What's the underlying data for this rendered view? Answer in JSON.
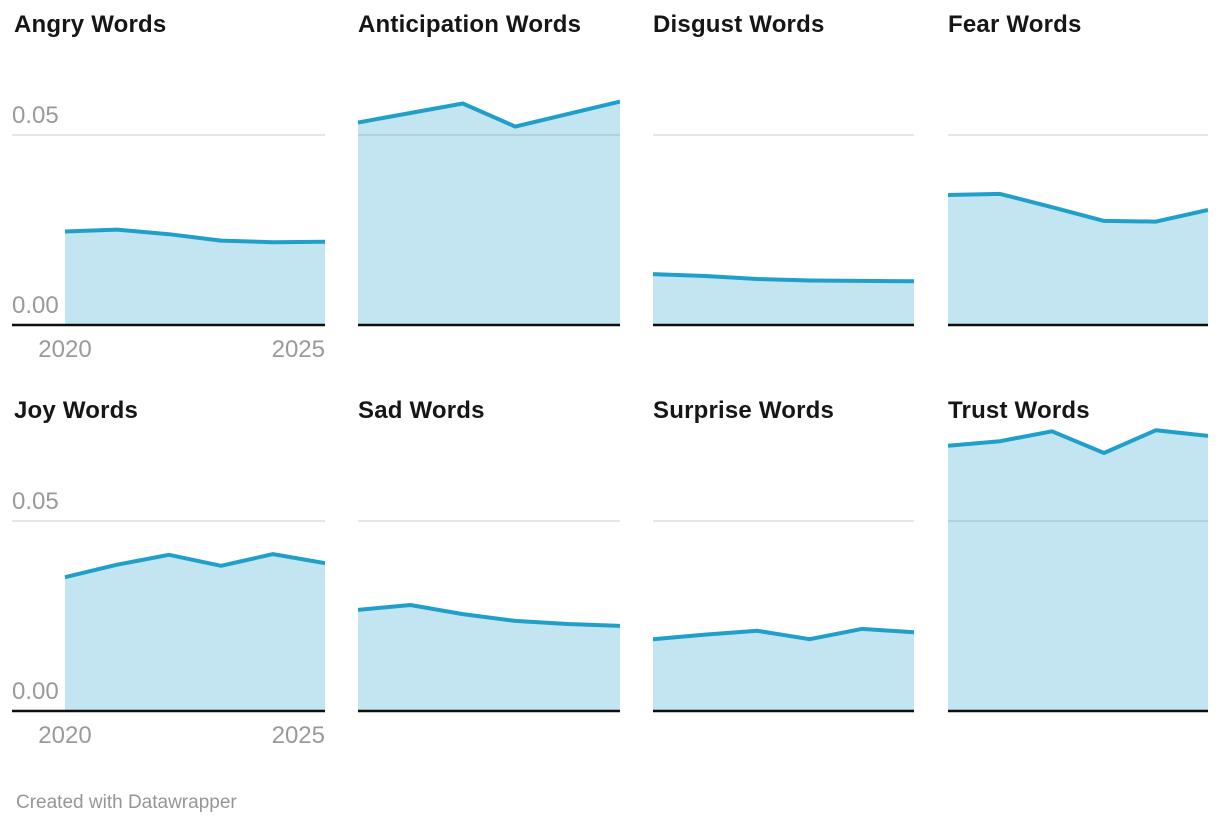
{
  "page": {
    "footer": "Created with Datawrapper"
  },
  "style": {
    "line_color": "#1f9fca",
    "fill_color": "#1f9fca",
    "fill_opacity": 0.27,
    "grid_color": "#d8d8d8",
    "axis_color": "#0e0e0e",
    "title_color": "#161616",
    "tick_color": "#9a9a9a"
  },
  "chart_data": {
    "type": "area",
    "layout": "small-multiples",
    "x": [
      2020,
      2021,
      2022,
      2023,
      2024,
      2025
    ],
    "x_ticks": [
      "2020",
      "2025"
    ],
    "y_ticks": [
      "0.05",
      "0.00"
    ],
    "grid_value": 0.05,
    "ylim": [
      0,
      0.076
    ],
    "legend": "none",
    "series": [
      {
        "name": "Angry Words",
        "values": [
          0.0246,
          0.0251,
          0.0239,
          0.0222,
          0.0218,
          0.0219
        ]
      },
      {
        "name": "Anticipation Words",
        "values": [
          0.0533,
          0.0558,
          0.0583,
          0.0522,
          0.0555,
          0.0588
        ]
      },
      {
        "name": "Disgust Words",
        "values": [
          0.0134,
          0.0129,
          0.0121,
          0.0117,
          0.0116,
          0.0115
        ]
      },
      {
        "name": "Fear Words",
        "values": [
          0.0342,
          0.0345,
          0.031,
          0.0274,
          0.0272,
          0.0303
        ]
      },
      {
        "name": "Joy Words",
        "values": [
          0.0352,
          0.0385,
          0.0411,
          0.0382,
          0.0413,
          0.0389
        ]
      },
      {
        "name": "Sad Words",
        "values": [
          0.0266,
          0.0279,
          0.0255,
          0.0237,
          0.0229,
          0.0224
        ]
      },
      {
        "name": "Surprise Words",
        "values": [
          0.0189,
          0.0201,
          0.0211,
          0.0189,
          0.0216,
          0.0207
        ]
      },
      {
        "name": "Trust Words",
        "values": [
          0.0698,
          0.071,
          0.0736,
          0.0679,
          0.0739,
          0.0724
        ]
      }
    ]
  }
}
